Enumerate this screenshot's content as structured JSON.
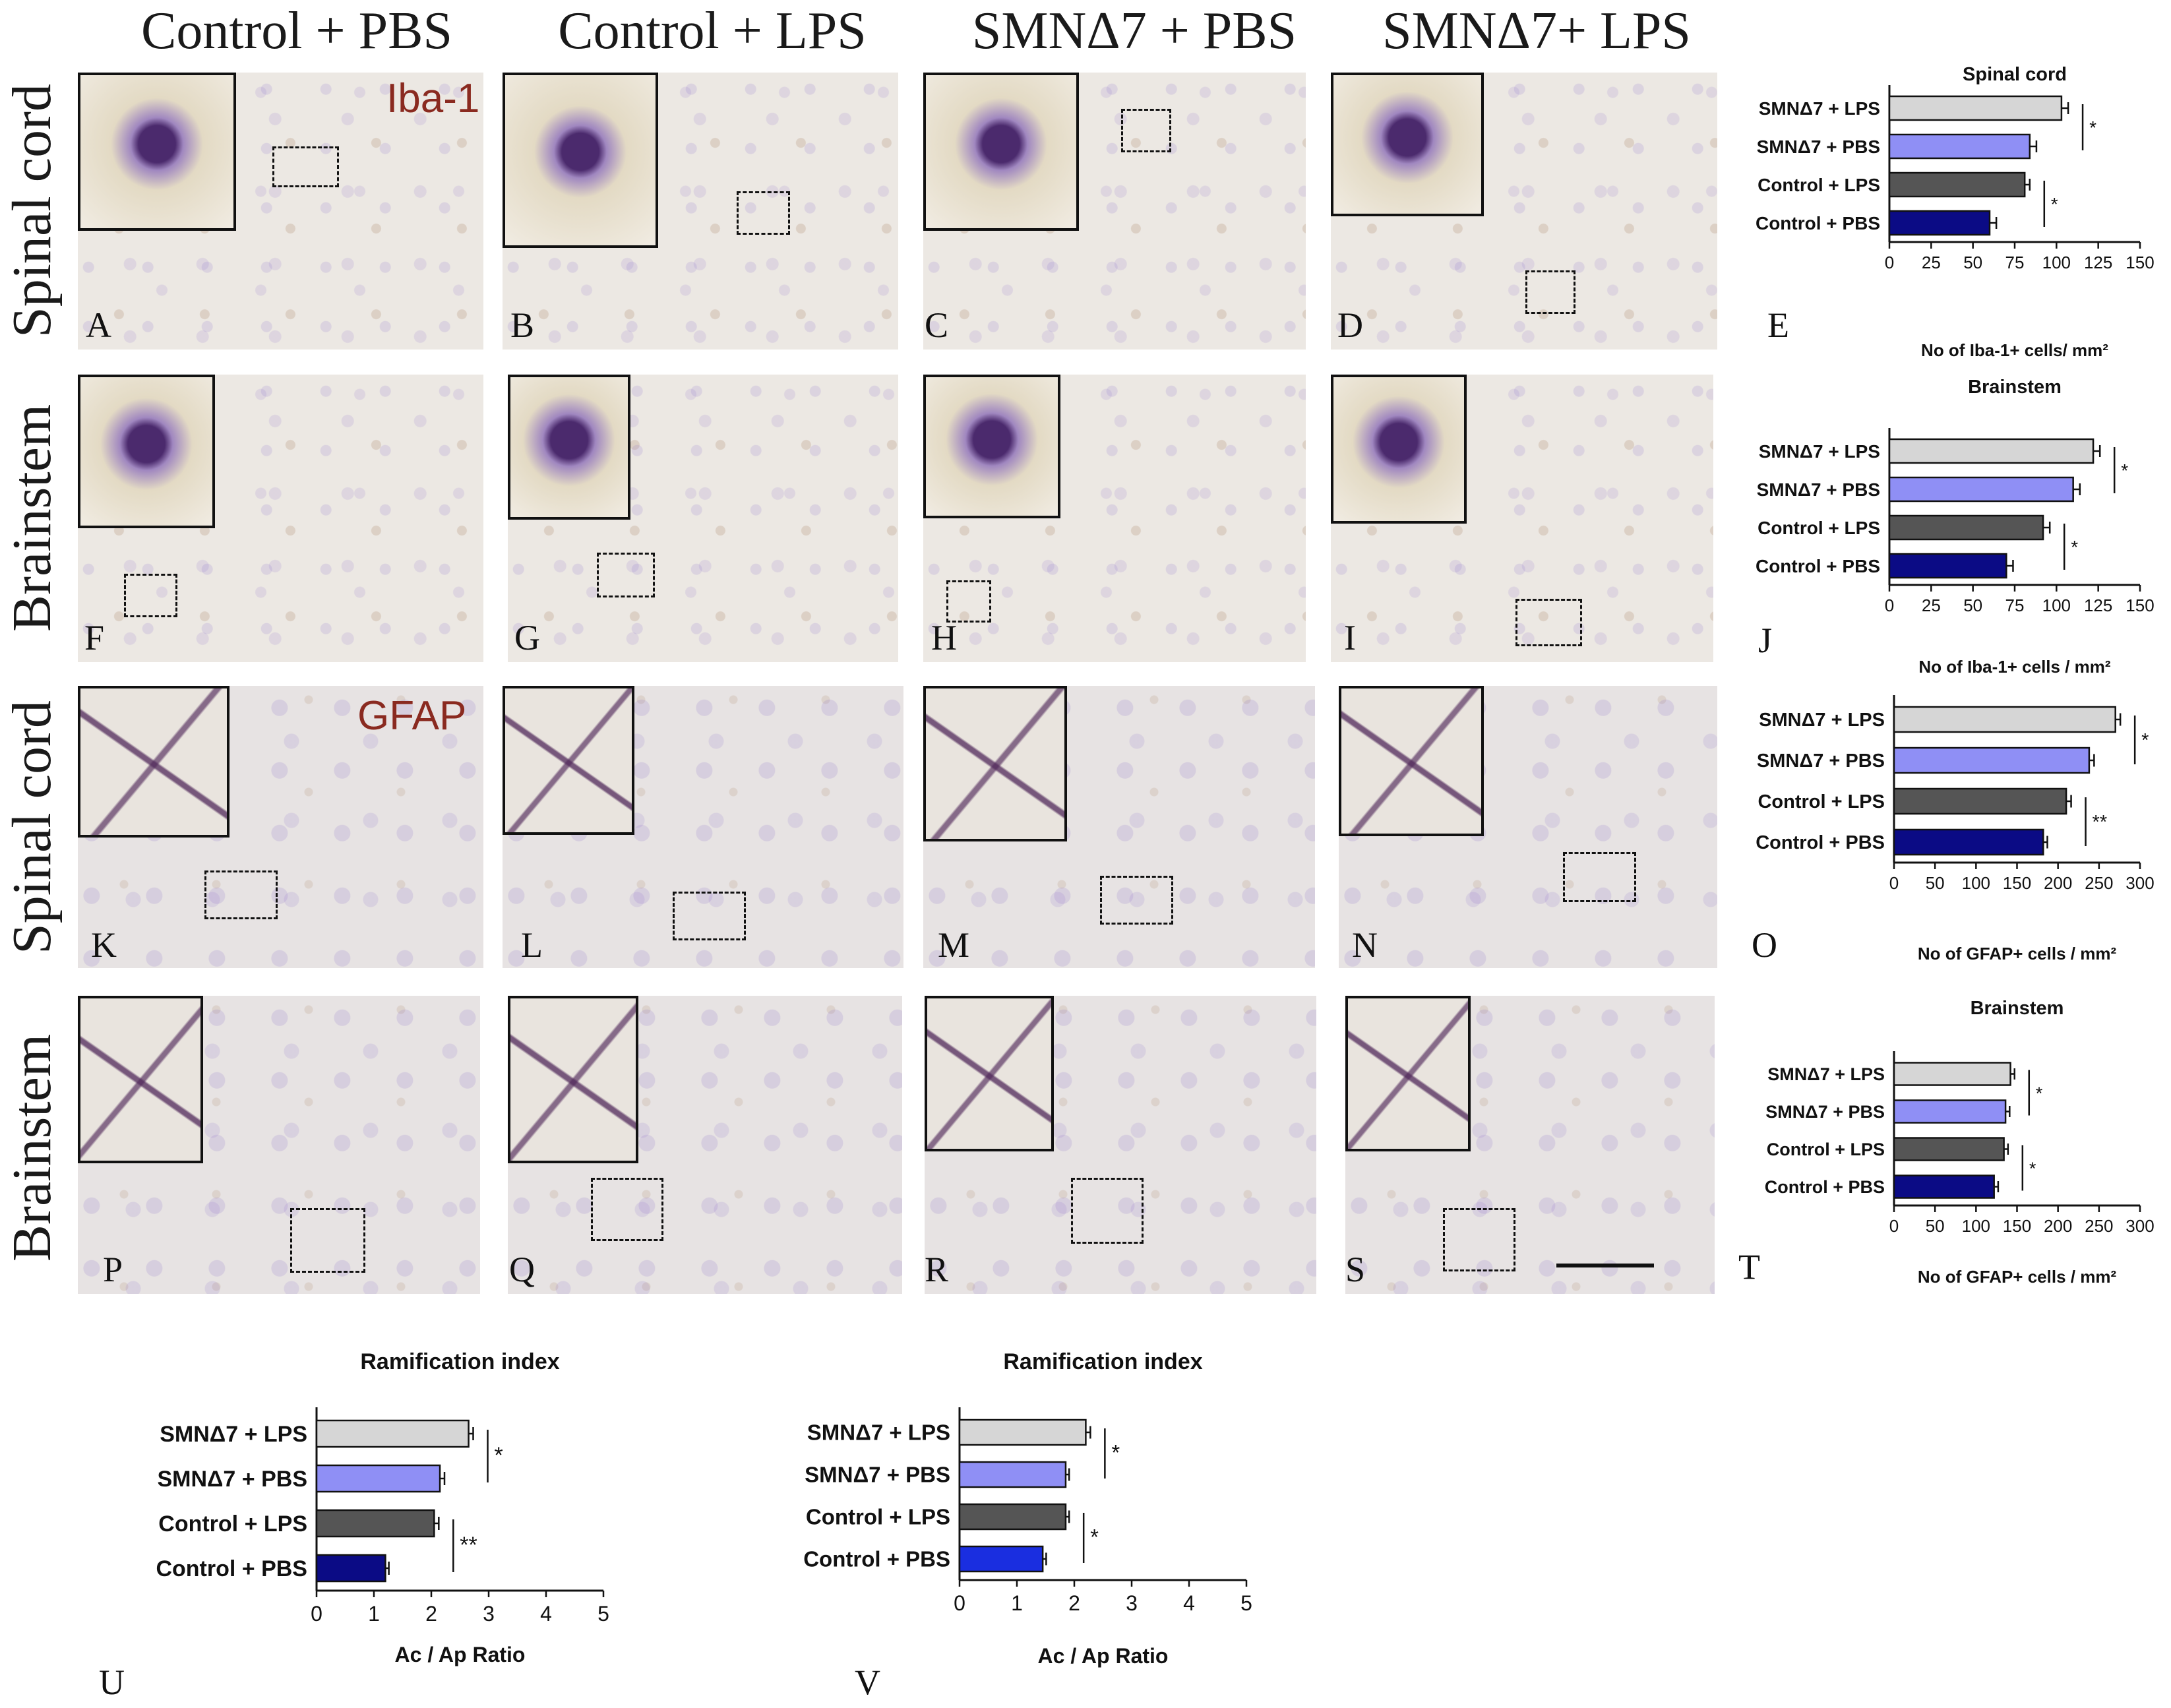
{
  "columns": [
    "Control + PBS",
    "Control + LPS",
    "SMNΔ7 + PBS",
    "SMNΔ7+ LPS"
  ],
  "row_labels": [
    "Spinal cord",
    "Brainstem",
    "Spinal cord",
    "Brainstem"
  ],
  "stains": {
    "iba1": "Iba-1",
    "gfap": "GFAP"
  },
  "panels": [
    [
      "A",
      "B",
      "C",
      "D"
    ],
    [
      "F",
      "G",
      "H",
      "I"
    ],
    [
      "K",
      "L",
      "M",
      "N"
    ],
    [
      "P",
      "Q",
      "R",
      "S"
    ]
  ],
  "figure_letters": {
    "E": "E",
    "J": "J",
    "O": "O",
    "T": "T",
    "U": "U",
    "V": "V"
  },
  "colors": {
    "smn_lps": "#d6d6d6",
    "smn_pbs": "#8f8ff5",
    "ctrl_lps": "#555555",
    "ctrl_pbs": "#0b0b85",
    "ctrl_pbs_v": "#1a2ee0",
    "stain_text": "#8a2a20"
  },
  "chart_data": [
    {
      "id": "E",
      "type": "bar",
      "orientation": "horizontal",
      "title": "Spinal cord",
      "categories": [
        "SMNΔ7 + LPS",
        "SMNΔ7 + PBS",
        "Control + LPS",
        "Control + PBS"
      ],
      "values": [
        103,
        84,
        81,
        60
      ],
      "errors": [
        4,
        4,
        3,
        4
      ],
      "xlim": [
        0,
        150
      ],
      "xticks": [
        "0",
        "25",
        "50",
        "75",
        "100",
        "125",
        "150"
      ],
      "xlabel": "No of Iba-1+ cells/ mm²",
      "significance": [
        {
          "between": [
            0,
            1
          ],
          "label": "*"
        },
        {
          "between": [
            2,
            3
          ],
          "label": "*"
        }
      ]
    },
    {
      "id": "J",
      "type": "bar",
      "orientation": "horizontal",
      "title": "Brainstem",
      "categories": [
        "SMNΔ7 + LPS",
        "SMNΔ7 + PBS",
        "Control + LPS",
        "Control + PBS"
      ],
      "values": [
        122,
        110,
        92,
        70
      ],
      "errors": [
        4,
        4,
        4,
        4
      ],
      "xlim": [
        0,
        150
      ],
      "xticks": [
        "0",
        "25",
        "50",
        "75",
        "100",
        "125",
        "150"
      ],
      "xlabel": "No of Iba-1+ cells / mm²",
      "significance": [
        {
          "between": [
            0,
            1
          ],
          "label": "*"
        },
        {
          "between": [
            2,
            3
          ],
          "label": "*"
        }
      ]
    },
    {
      "id": "O",
      "type": "bar",
      "orientation": "horizontal",
      "title": "",
      "categories": [
        "SMNΔ7 + LPS",
        "SMNΔ7 + PBS",
        "Control + LPS",
        "Control + PBS"
      ],
      "values": [
        270,
        238,
        210,
        182
      ],
      "errors": [
        6,
        6,
        6,
        5
      ],
      "xlim": [
        0,
        300
      ],
      "xticks": [
        "0",
        "50",
        "100",
        "150",
        "200",
        "250",
        "300"
      ],
      "xlabel": "No of GFAP+ cells / mm²",
      "significance": [
        {
          "between": [
            0,
            1
          ],
          "label": "*"
        },
        {
          "between": [
            2,
            3
          ],
          "label": "**"
        }
      ]
    },
    {
      "id": "T",
      "type": "bar",
      "orientation": "horizontal",
      "title": "Brainstem",
      "categories": [
        "SMNΔ7 + LPS",
        "SMNΔ7 + PBS",
        "Control + LPS",
        "Control + PBS"
      ],
      "values": [
        142,
        136,
        134,
        122
      ],
      "errors": [
        5,
        5,
        5,
        5
      ],
      "xlim": [
        0,
        300
      ],
      "xticks": [
        "0",
        "50",
        "100",
        "150",
        "200",
        "250",
        "300"
      ],
      "xlabel": "No of GFAP+ cells / mm²",
      "significance": [
        {
          "between": [
            0,
            1
          ],
          "label": "*"
        },
        {
          "between": [
            2,
            3
          ],
          "label": "*"
        }
      ]
    },
    {
      "id": "U",
      "type": "bar",
      "orientation": "horizontal",
      "title": "Ramification index",
      "categories": [
        "SMNΔ7 + LPS",
        "SMNΔ7 + PBS",
        "Control + LPS",
        "Control + PBS"
      ],
      "values": [
        2.65,
        2.15,
        2.05,
        1.2
      ],
      "errors": [
        0.08,
        0.08,
        0.08,
        0.06
      ],
      "xlim": [
        0,
        5
      ],
      "xticks": [
        "0",
        "1",
        "2",
        "3",
        "4",
        "5"
      ],
      "xlabel": "Ac / Ap Ratio",
      "significance": [
        {
          "between": [
            0,
            1
          ],
          "label": "*"
        },
        {
          "between": [
            2,
            3
          ],
          "label": "**"
        }
      ]
    },
    {
      "id": "V",
      "type": "bar",
      "orientation": "horizontal",
      "title": "Ramification index",
      "categories": [
        "SMNΔ7 + LPS",
        "SMNΔ7 + PBS",
        "Control + LPS",
        "Control + PBS"
      ],
      "values": [
        2.2,
        1.85,
        1.85,
        1.45
      ],
      "errors": [
        0.08,
        0.06,
        0.06,
        0.06
      ],
      "xlim": [
        0,
        5
      ],
      "xticks": [
        "0",
        "1",
        "2",
        "3",
        "4",
        "5"
      ],
      "xlabel": "Ac / Ap Ratio",
      "significance": [
        {
          "between": [
            0,
            1
          ],
          "label": "*"
        },
        {
          "between": [
            2,
            3
          ],
          "label": "*"
        }
      ]
    }
  ]
}
